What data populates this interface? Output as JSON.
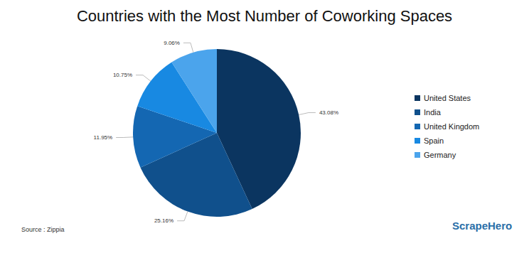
{
  "chart_data": {
    "type": "pie",
    "title": "Countries with the Most Number of Coworking Spaces",
    "categories": [
      "United States",
      "India",
      "United Kingdom",
      "Spain",
      "Germany"
    ],
    "values": [
      43.08,
      25.16,
      11.95,
      10.75,
      9.06
    ],
    "value_labels": [
      "43.08%",
      "25.16%",
      "11.95%",
      "10.75%",
      "9.06%"
    ],
    "colors": [
      "#0b3560",
      "#10508c",
      "#1467b2",
      "#1889e2",
      "#4ba4ec"
    ],
    "data_labels": true,
    "legend": "right",
    "annotations": [
      "Source : Zippia",
      "ScrapeHero"
    ]
  }
}
